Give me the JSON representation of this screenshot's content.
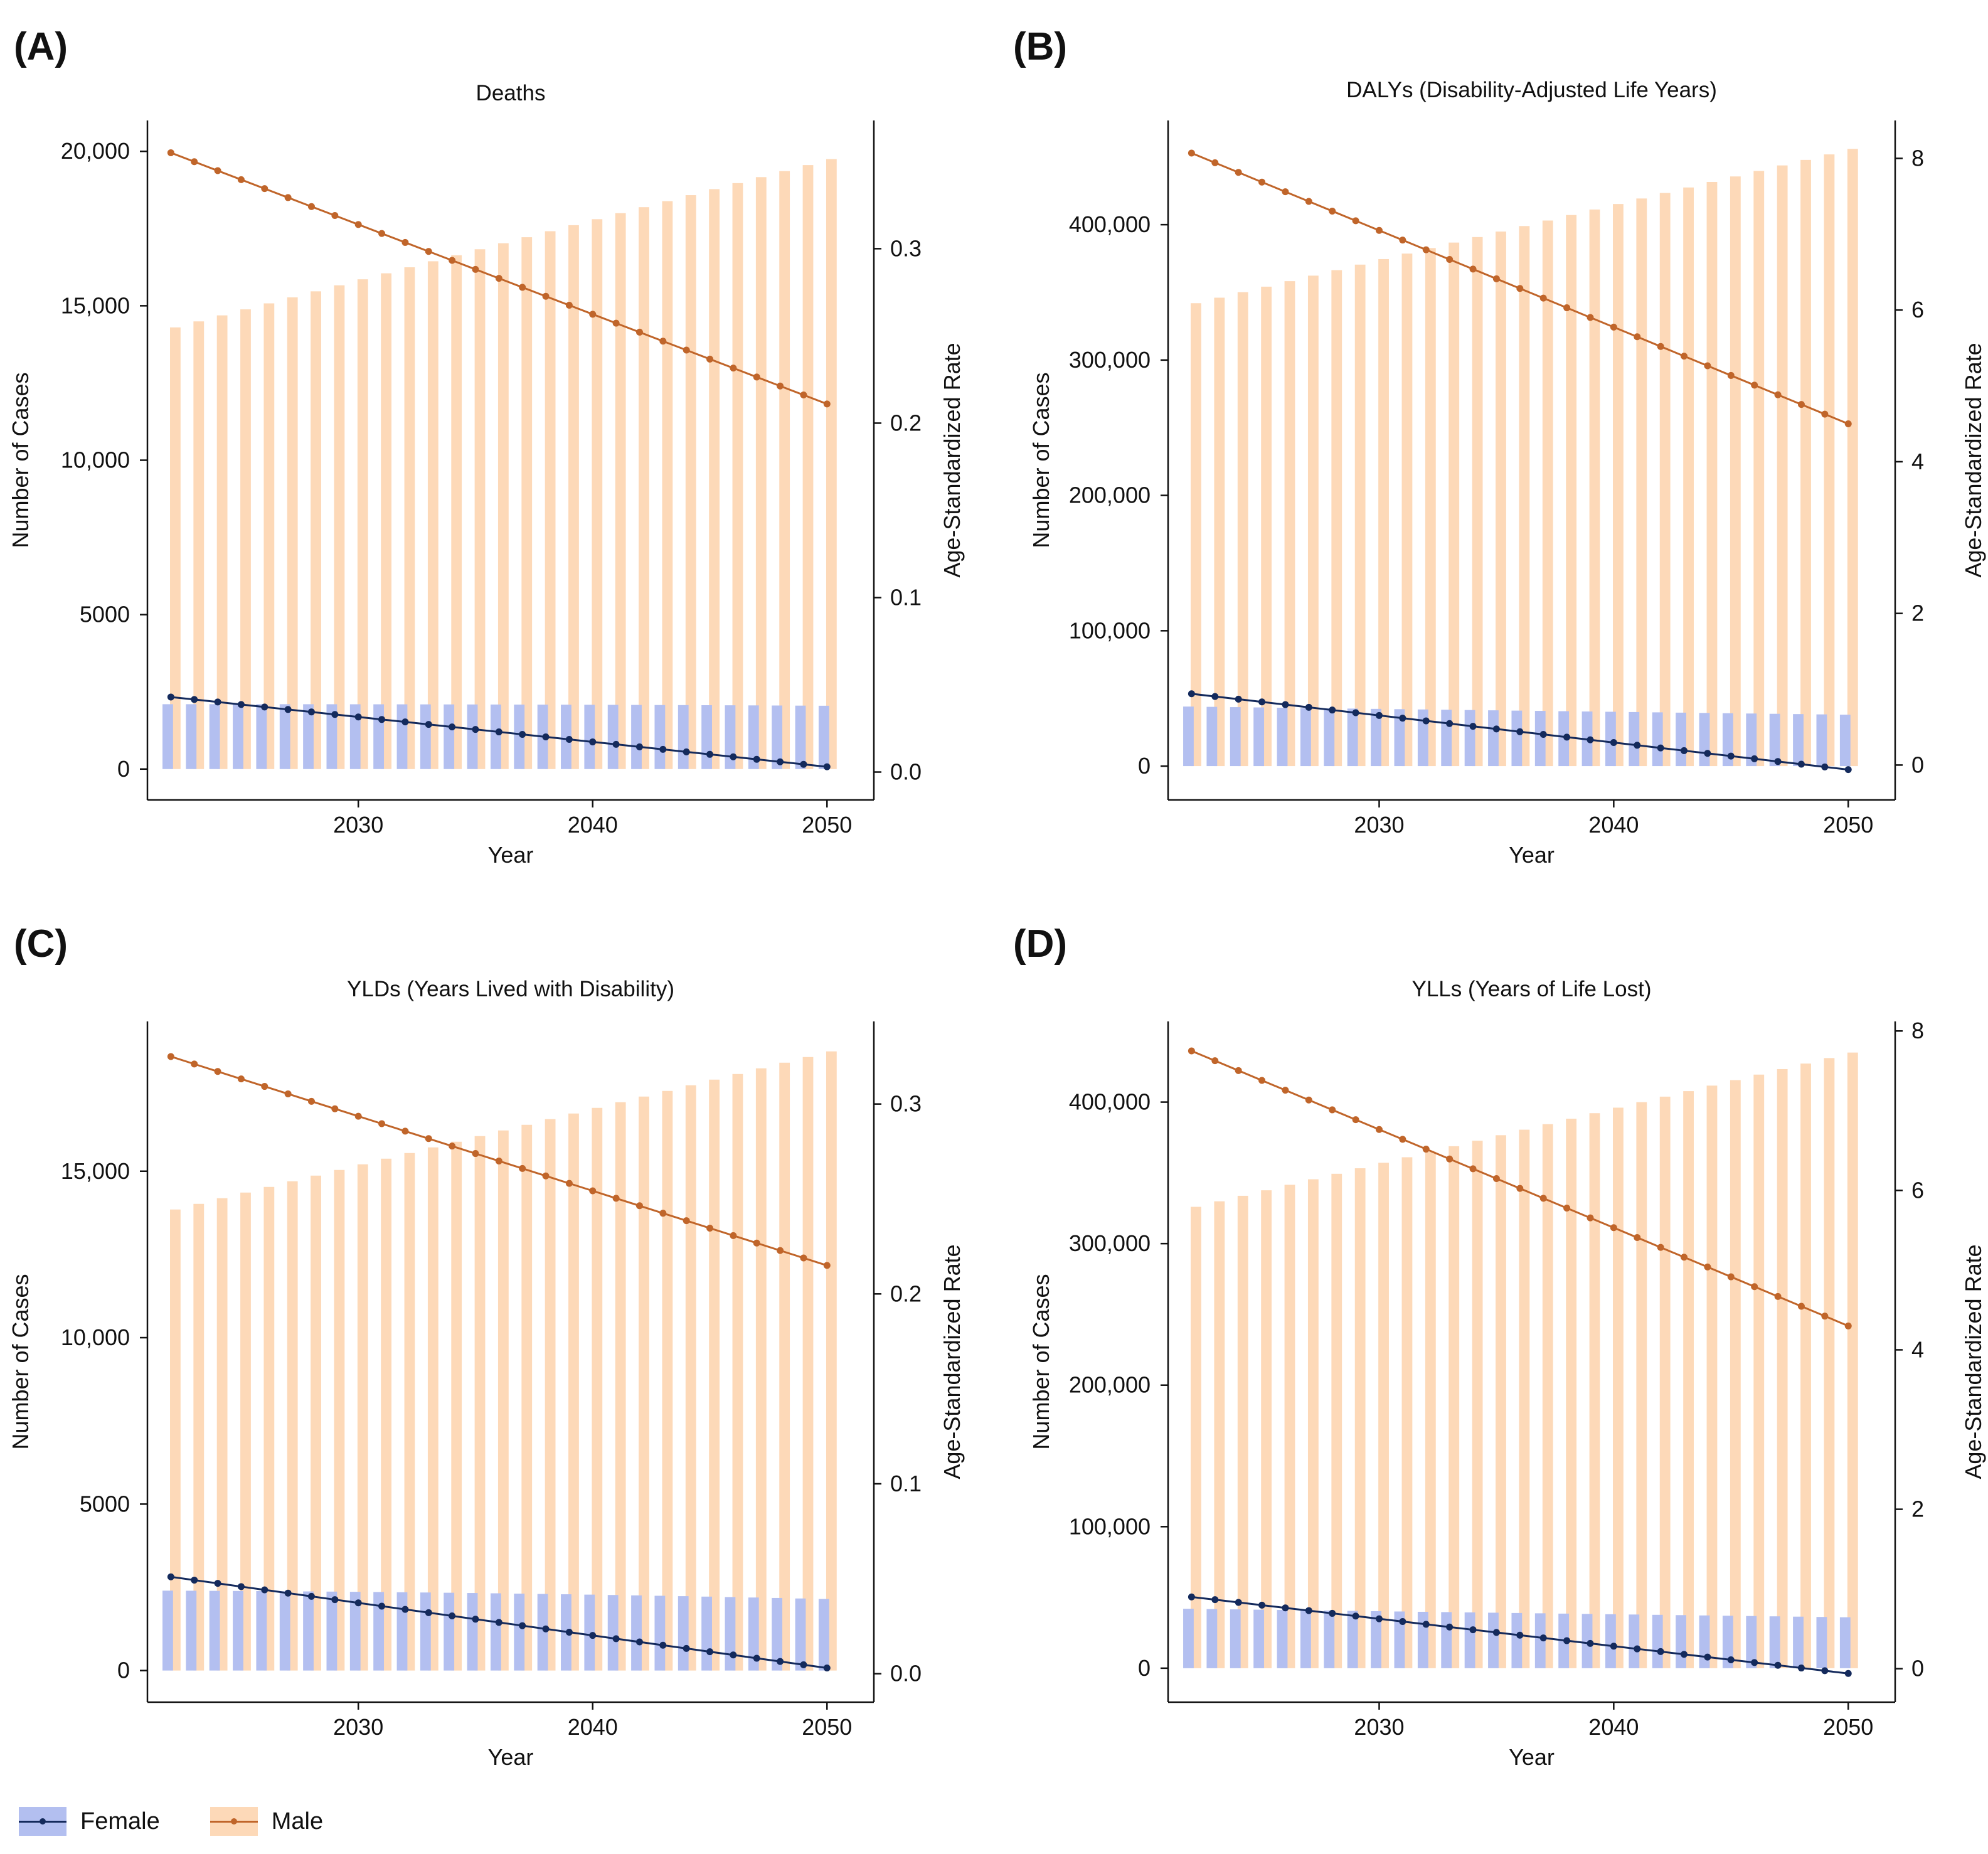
{
  "colors": {
    "female_bar": "#b3bff0",
    "male_bar": "#fdd9b8",
    "female_line": "#142a5c",
    "male_line": "#c0652a"
  },
  "legend": {
    "female": "Female",
    "male": "Male"
  },
  "chart_data": [
    {
      "panel": "(A)",
      "type": "bar+line",
      "title": "Deaths",
      "xlabel": "Year",
      "ylabel": "Number of Cases",
      "y2label": "Age-Standardized Rate",
      "xlim": [
        2021,
        2052
      ],
      "ylim": [
        -1000,
        21000
      ],
      "y2lim": [
        -0.016,
        0.3735
      ],
      "xticks": [
        2030,
        2040,
        2050
      ],
      "xtick_labels": [
        "2030",
        "2040",
        "2050"
      ],
      "yticks": [
        0,
        5000,
        10000,
        15000,
        20000
      ],
      "ytick_labels": [
        "0",
        "5000",
        "10,000",
        "15,000",
        "20,000"
      ],
      "y2ticks": [
        0,
        0.1,
        0.2,
        0.3
      ],
      "y2tick_labels": [
        "0.0",
        "0.1",
        "0.2",
        "0.3"
      ],
      "x_start": 2022,
      "x_end": 2050,
      "series": [
        {
          "name": "Female",
          "kind": "bar",
          "start": 2100,
          "end": 2050,
          "peak": 2100
        },
        {
          "name": "Male",
          "kind": "bar",
          "start": 14300,
          "end": 19750
        },
        {
          "name": "Female",
          "kind": "line",
          "axis": "y2",
          "start": 0.043,
          "end": 0.003
        },
        {
          "name": "Male",
          "kind": "line",
          "axis": "y2",
          "start": 0.355,
          "end": 0.211
        }
      ]
    },
    {
      "panel": "(B)",
      "type": "bar+line",
      "title": "DALYs (Disability-Adjusted Life Years)",
      "xlabel": "Year",
      "ylabel": "Number of Cases",
      "y2label": "Age-Standardized Rate",
      "xlim": [
        2021,
        2052
      ],
      "ylim": [
        -25000,
        477000
      ],
      "y2lim": [
        -0.46,
        8.5
      ],
      "xticks": [
        2030,
        2040,
        2050
      ],
      "xtick_labels": [
        "2030",
        "2040",
        "2050"
      ],
      "yticks": [
        0,
        100000,
        200000,
        300000,
        400000
      ],
      "ytick_labels": [
        "0",
        "100,000",
        "200,000",
        "300,000",
        "400,000"
      ],
      "y2ticks": [
        0,
        2,
        4,
        6,
        8
      ],
      "y2tick_labels": [
        "0",
        "2",
        "4",
        "6",
        "8"
      ],
      "x_start": 2022,
      "x_end": 2050,
      "series": [
        {
          "name": "Female",
          "kind": "bar",
          "start": 44000,
          "end": 38000
        },
        {
          "name": "Male",
          "kind": "bar",
          "start": 342000,
          "end": 456000
        },
        {
          "name": "Female",
          "kind": "line",
          "axis": "y2",
          "start": 0.94,
          "end": -0.06
        },
        {
          "name": "Male",
          "kind": "line",
          "axis": "y2",
          "start": 8.07,
          "end": 4.5
        }
      ]
    },
    {
      "panel": "(C)",
      "type": "bar+line",
      "title": "YLDs (Years Lived with Disability)",
      "xlabel": "Year",
      "ylabel": "Number of Cases",
      "y2label": "Age-Standardized Rate",
      "xlim": [
        2021,
        2052
      ],
      "ylim": [
        -950,
        19500
      ],
      "y2lim": [
        -0.015,
        0.3435
      ],
      "xticks": [
        2030,
        2040,
        2050
      ],
      "xtick_labels": [
        "2030",
        "2040",
        "2050"
      ],
      "yticks": [
        0,
        5000,
        10000,
        15000
      ],
      "ytick_labels": [
        "0",
        "5000",
        "10,000",
        "15,000"
      ],
      "y2ticks": [
        0,
        0.1,
        0.2,
        0.3
      ],
      "y2tick_labels": [
        "0.0",
        "0.1",
        "0.2",
        "0.3"
      ],
      "x_start": 2022,
      "x_end": 2050,
      "series": [
        {
          "name": "Female",
          "kind": "bar",
          "start": 2400,
          "end": 2150,
          "peak": 2350
        },
        {
          "name": "Male",
          "kind": "bar",
          "start": 13850,
          "end": 18600
        },
        {
          "name": "Female",
          "kind": "line",
          "axis": "y2",
          "start": 0.051,
          "end": 0.003
        },
        {
          "name": "Male",
          "kind": "line",
          "axis": "y2",
          "start": 0.325,
          "end": 0.215
        }
      ]
    },
    {
      "panel": "(D)",
      "type": "bar+line",
      "title": "YLLs (Years of Life Lost)",
      "xlabel": "Year",
      "ylabel": "Number of Cases",
      "y2label": "Age-Standardized Rate",
      "xlim": [
        2021,
        2052
      ],
      "ylim": [
        -24000,
        457000
      ],
      "y2lim": [
        -0.42,
        8.12
      ],
      "xticks": [
        2030,
        2040,
        2050
      ],
      "xtick_labels": [
        "2030",
        "2040",
        "2050"
      ],
      "yticks": [
        0,
        100000,
        200000,
        300000,
        400000
      ],
      "ytick_labels": [
        "0",
        "100,000",
        "200,000",
        "300,000",
        "400,000"
      ],
      "y2ticks": [
        0,
        2,
        4,
        6,
        8
      ],
      "y2tick_labels": [
        "0",
        "2",
        "4",
        "6",
        "8"
      ],
      "x_start": 2022,
      "x_end": 2050,
      "series": [
        {
          "name": "Female",
          "kind": "bar",
          "start": 42000,
          "end": 36000
        },
        {
          "name": "Male",
          "kind": "bar",
          "start": 326000,
          "end": 435000
        },
        {
          "name": "Female",
          "kind": "line",
          "axis": "y2",
          "start": 0.9,
          "end": -0.06
        },
        {
          "name": "Male",
          "kind": "line",
          "axis": "y2",
          "start": 7.75,
          "end": 4.3
        }
      ]
    }
  ]
}
